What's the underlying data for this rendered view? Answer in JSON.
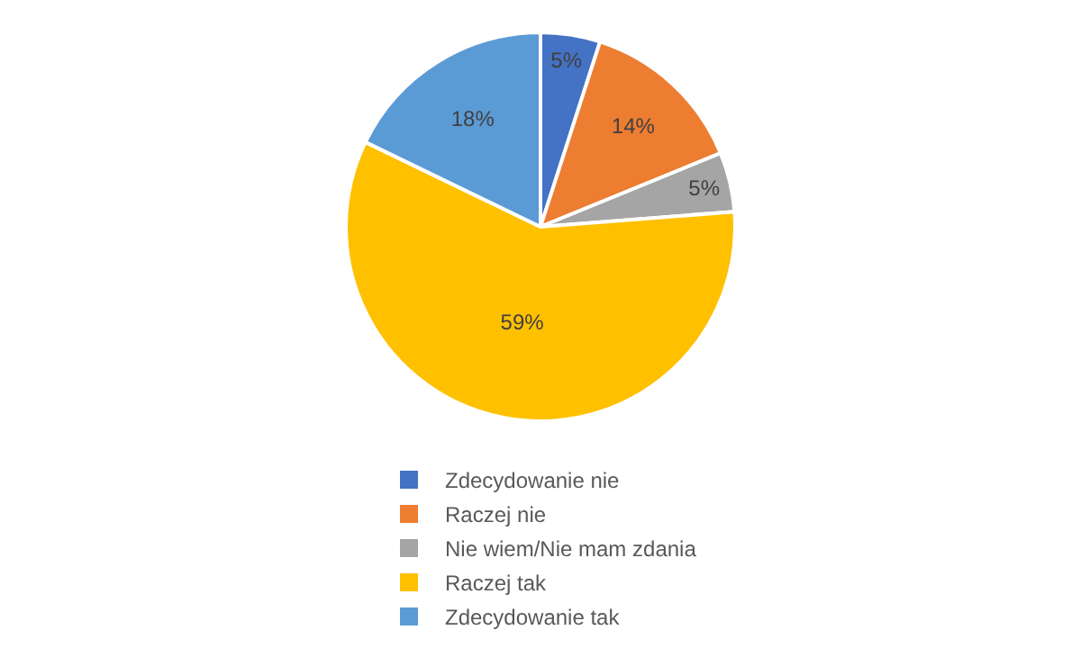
{
  "chart_data": {
    "type": "pie",
    "categories": [
      "Zdecydowanie nie",
      "Raczej nie",
      "Nie wiem/Nie mam zdania",
      "Raczej tak",
      "Zdecydowanie tak"
    ],
    "values": [
      5,
      14,
      5,
      59,
      18
    ],
    "value_labels": [
      "5%",
      "14%",
      "5%",
      "59%",
      "18%"
    ],
    "colors": [
      "#4472c4",
      "#ed7d31",
      "#a5a5a5",
      "#ffc000",
      "#5b9bd5"
    ],
    "legend": "bottom"
  }
}
